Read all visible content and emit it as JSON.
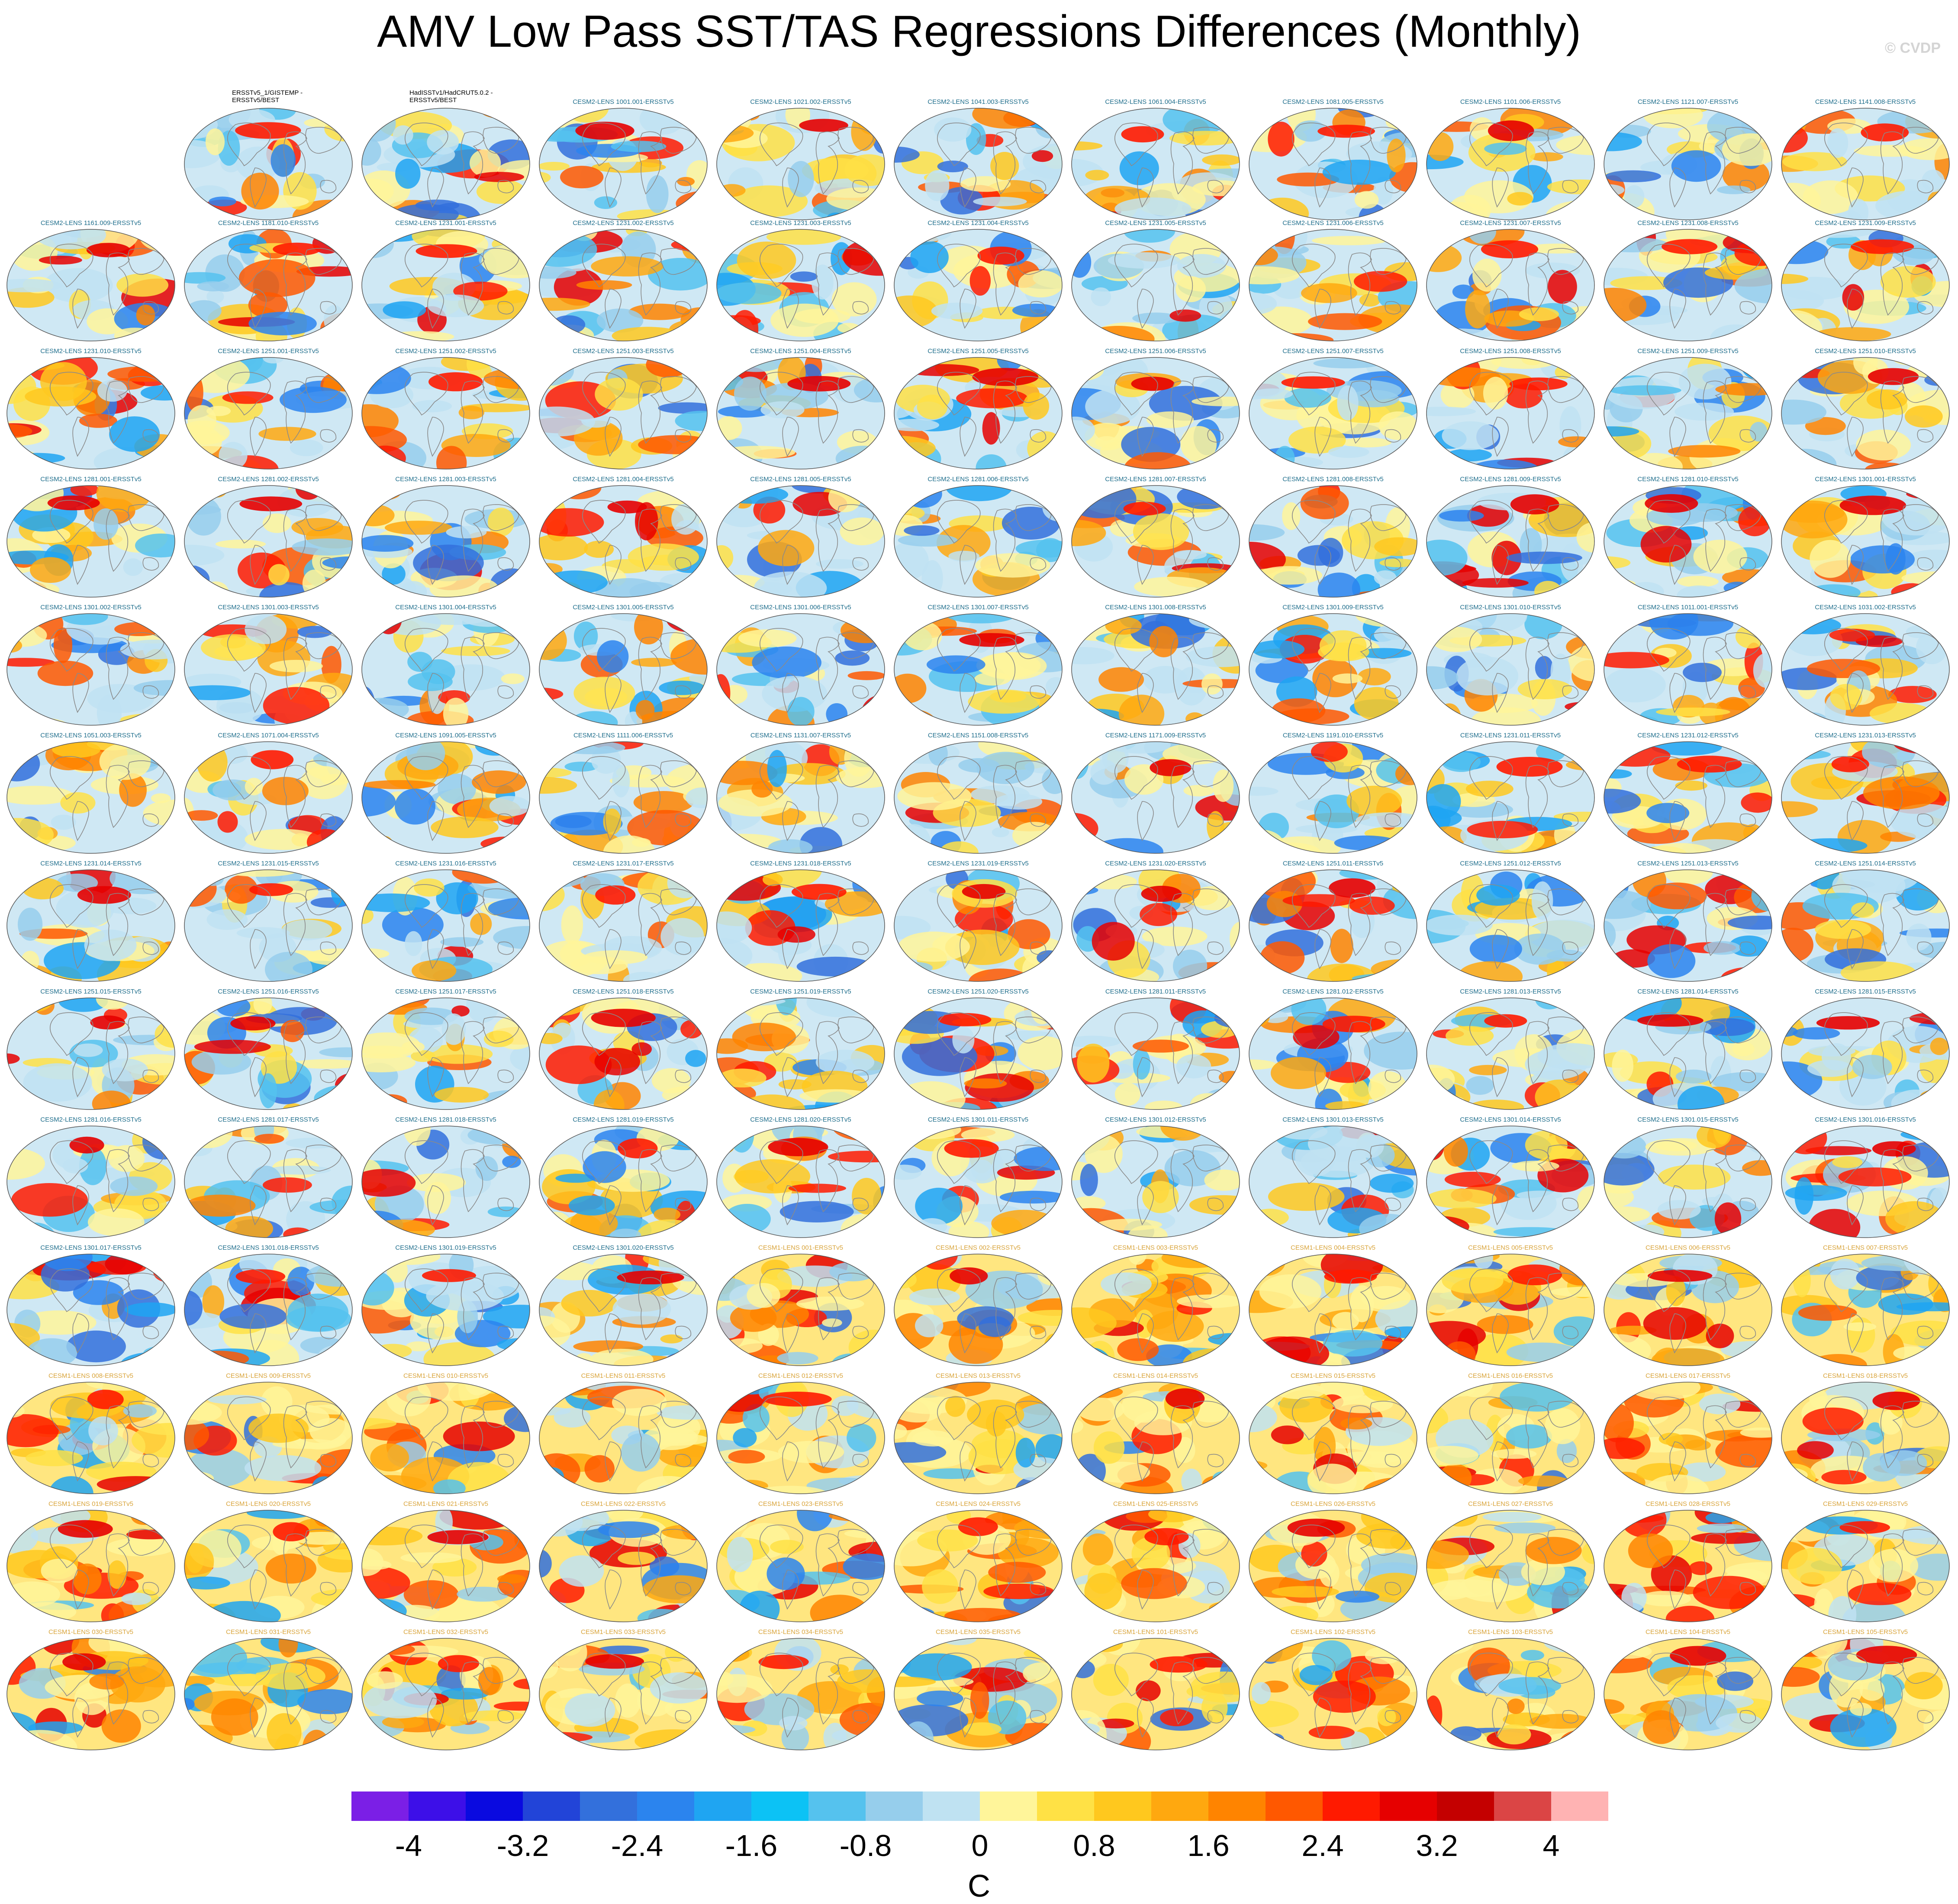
{
  "title": "AMV Low Pass SST/TAS Regressions Differences (Monthly)",
  "watermark": "© CVDP",
  "colorbar": {
    "units": "C",
    "ticks": [
      "-4",
      "-3.2",
      "-2.4",
      "-1.6",
      "-0.8",
      "0",
      "0.8",
      "1.6",
      "2.4",
      "3.2",
      "4"
    ],
    "colors": [
      "#7b1fe6",
      "#3d0fe8",
      "#0a0ae0",
      "#2244d8",
      "#3370dc",
      "#2b84ee",
      "#1fa5f2",
      "#0cc2f5",
      "#55c2ee",
      "#96ceec",
      "#bfe2f2",
      "#fff59a",
      "#ffe145",
      "#ffc81e",
      "#ffa80f",
      "#ff8400",
      "#ff5800",
      "#ff1a00",
      "#e60000",
      "#c40000",
      "#db4545",
      "#ffb3b3"
    ]
  },
  "chart_data": {
    "type": "map-grid",
    "title": "AMV Low Pass SST/TAS Regressions Differences (Monthly)",
    "colorbar_range": [
      -4.4,
      4.4
    ],
    "colorbar_units": "C",
    "colorbar_ticks": [
      -4,
      -3.2,
      -2.4,
      -1.6,
      -0.8,
      0,
      0.8,
      1.6,
      2.4,
      3.2,
      4
    ],
    "panels": [
      "ERSSTv5_1/GISTEMP -\nERSSTv5/BEST",
      "HadISSTv1/HadCRUT5.0.2 -\nERSSTv5/BEST",
      "CESM2-LENS 1001.001-ERSSTv5",
      "CESM2-LENS 1021.002-ERSSTv5",
      "CESM2-LENS 1041.003-ERSSTv5",
      "CESM2-LENS 1061.004-ERSSTv5",
      "CESM2-LENS 1081.005-ERSSTv5",
      "CESM2-LENS 1101.006-ERSSTv5",
      "CESM2-LENS 1121.007-ERSSTv5",
      "CESM2-LENS 1141.008-ERSSTv5",
      "CESM2-LENS 1161.009-ERSSTv5",
      "CESM2-LENS 1181.010-ERSSTv5",
      "CESM2-LENS 1231.001-ERSSTv5",
      "CESM2-LENS 1231.002-ERSSTv5",
      "CESM2-LENS 1231.003-ERSSTv5",
      "CESM2-LENS 1231.004-ERSSTv5",
      "CESM2-LENS 1231.005-ERSSTv5",
      "CESM2-LENS 1231.006-ERSSTv5",
      "CESM2-LENS 1231.007-ERSSTv5",
      "CESM2-LENS 1231.008-ERSSTv5",
      "CESM2-LENS 1231.009-ERSSTv5",
      "CESM2-LENS 1231.010-ERSSTv5",
      "CESM2-LENS 1251.001-ERSSTv5",
      "CESM2-LENS 1251.002-ERSSTv5",
      "CESM2-LENS 1251.003-ERSSTv5",
      "CESM2-LENS 1251.004-ERSSTv5",
      "CESM2-LENS 1251.005-ERSSTv5",
      "CESM2-LENS 1251.006-ERSSTv5",
      "CESM2-LENS 1251.007-ERSSTv5",
      "CESM2-LENS 1251.008-ERSSTv5",
      "CESM2-LENS 1251.009-ERSSTv5",
      "CESM2-LENS 1251.010-ERSSTv5",
      "CESM2-LENS 1281.001-ERSSTv5",
      "CESM2-LENS 1281.002-ERSSTv5",
      "CESM2-LENS 1281.003-ERSSTv5",
      "CESM2-LENS 1281.004-ERSSTv5",
      "CESM2-LENS 1281.005-ERSSTv5",
      "CESM2-LENS 1281.006-ERSSTv5",
      "CESM2-LENS 1281.007-ERSSTv5",
      "CESM2-LENS 1281.008-ERSSTv5",
      "CESM2-LENS 1281.009-ERSSTv5",
      "CESM2-LENS 1281.010-ERSSTv5",
      "CESM2-LENS 1301.001-ERSSTv5",
      "CESM2-LENS 1301.002-ERSSTv5",
      "CESM2-LENS 1301.003-ERSSTv5",
      "CESM2-LENS 1301.004-ERSSTv5",
      "CESM2-LENS 1301.005-ERSSTv5",
      "CESM2-LENS 1301.006-ERSSTv5",
      "CESM2-LENS 1301.007-ERSSTv5",
      "CESM2-LENS 1301.008-ERSSTv5",
      "CESM2-LENS 1301.009-ERSSTv5",
      "CESM2-LENS 1301.010-ERSSTv5",
      "CESM2-LENS 1011.001-ERSSTv5",
      "CESM2-LENS 1031.002-ERSSTv5",
      "CESM2-LENS 1051.003-ERSSTv5",
      "CESM2-LENS 1071.004-ERSSTv5",
      "CESM2-LENS 1091.005-ERSSTv5",
      "CESM2-LENS 1111.006-ERSSTv5",
      "CESM2-LENS 1131.007-ERSSTv5",
      "CESM2-LENS 1151.008-ERSSTv5",
      "CESM2-LENS 1171.009-ERSSTv5",
      "CESM2-LENS 1191.010-ERSSTv5",
      "CESM2-LENS 1231.011-ERSSTv5",
      "CESM2-LENS 1231.012-ERSSTv5",
      "CESM2-LENS 1231.013-ERSSTv5",
      "CESM2-LENS 1231.014-ERSSTv5",
      "CESM2-LENS 1231.015-ERSSTv5",
      "CESM2-LENS 1231.016-ERSSTv5",
      "CESM2-LENS 1231.017-ERSSTv5",
      "CESM2-LENS 1231.018-ERSSTv5",
      "CESM2-LENS 1231.019-ERSSTv5",
      "CESM2-LENS 1231.020-ERSSTv5",
      "CESM2-LENS 1251.011-ERSSTv5",
      "CESM2-LENS 1251.012-ERSSTv5",
      "CESM2-LENS 1251.013-ERSSTv5",
      "CESM2-LENS 1251.014-ERSSTv5",
      "CESM2-LENS 1251.015-ERSSTv5",
      "CESM2-LENS 1251.016-ERSSTv5",
      "CESM2-LENS 1251.017-ERSSTv5",
      "CESM2-LENS 1251.018-ERSSTv5",
      "CESM2-LENS 1251.019-ERSSTv5",
      "CESM2-LENS 1251.020-ERSSTv5",
      "CESM2-LENS 1281.011-ERSSTv5",
      "CESM2-LENS 1281.012-ERSSTv5",
      "CESM2-LENS 1281.013-ERSSTv5",
      "CESM2-LENS 1281.014-ERSSTv5",
      "CESM2-LENS 1281.015-ERSSTv5",
      "CESM2-LENS 1281.016-ERSSTv5",
      "CESM2-LENS 1281.017-ERSSTv5",
      "CESM2-LENS 1281.018-ERSSTv5",
      "CESM2-LENS 1281.019-ERSSTv5",
      "CESM2-LENS 1281.020-ERSSTv5",
      "CESM2-LENS 1301.011-ERSSTv5",
      "CESM2-LENS 1301.012-ERSSTv5",
      "CESM2-LENS 1301.013-ERSSTv5",
      "CESM2-LENS 1301.014-ERSSTv5",
      "CESM2-LENS 1301.015-ERSSTv5",
      "CESM2-LENS 1301.016-ERSSTv5",
      "CESM2-LENS 1301.017-ERSSTv5",
      "CESM2-LENS 1301.018-ERSSTv5",
      "CESM2-LENS 1301.019-ERSSTv5",
      "CESM2-LENS 1301.020-ERSSTv5",
      "CESM1-LENS 001-ERSSTv5",
      "CESM1-LENS 002-ERSSTv5",
      "CESM1-LENS 003-ERSSTv5",
      "CESM1-LENS 004-ERSSTv5",
      "CESM1-LENS 005-ERSSTv5",
      "CESM1-LENS 006-ERSSTv5",
      "CESM1-LENS 007-ERSSTv5",
      "CESM1-LENS 008-ERSSTv5",
      "CESM1-LENS 009-ERSSTv5",
      "CESM1-LENS 010-ERSSTv5",
      "CESM1-LENS 011-ERSSTv5",
      "CESM1-LENS 012-ERSSTv5",
      "CESM1-LENS 013-ERSSTv5",
      "CESM1-LENS 014-ERSSTv5",
      "CESM1-LENS 015-ERSSTv5",
      "CESM1-LENS 016-ERSSTv5",
      "CESM1-LENS 017-ERSSTv5",
      "CESM1-LENS 018-ERSSTv5",
      "CESM1-LENS 019-ERSSTv5",
      "CESM1-LENS 020-ERSSTv5",
      "CESM1-LENS 021-ERSSTv5",
      "CESM1-LENS 022-ERSSTv5",
      "CESM1-LENS 023-ERSSTv5",
      "CESM1-LENS 024-ERSSTv5",
      "CESM1-LENS 025-ERSSTv5",
      "CESM1-LENS 026-ERSSTv5",
      "CESM1-LENS 027-ERSSTv5",
      "CESM1-LENS 028-ERSSTv5",
      "CESM1-LENS 029-ERSSTv5",
      "CESM1-LENS 030-ERSSTv5",
      "CESM1-LENS 031-ERSSTv5",
      "CESM1-LENS 032-ERSSTv5",
      "CESM1-LENS 033-ERSSTv5",
      "CESM1-LENS 034-ERSSTv5",
      "CESM1-LENS 035-ERSSTv5",
      "CESM1-LENS 101-ERSSTv5",
      "CESM1-LENS 102-ERSSTv5",
      "CESM1-LENS 103-ERSSTv5",
      "CESM1-LENS 104-ERSSTv5",
      "CESM1-LENS 105-ERSSTv5"
    ]
  }
}
